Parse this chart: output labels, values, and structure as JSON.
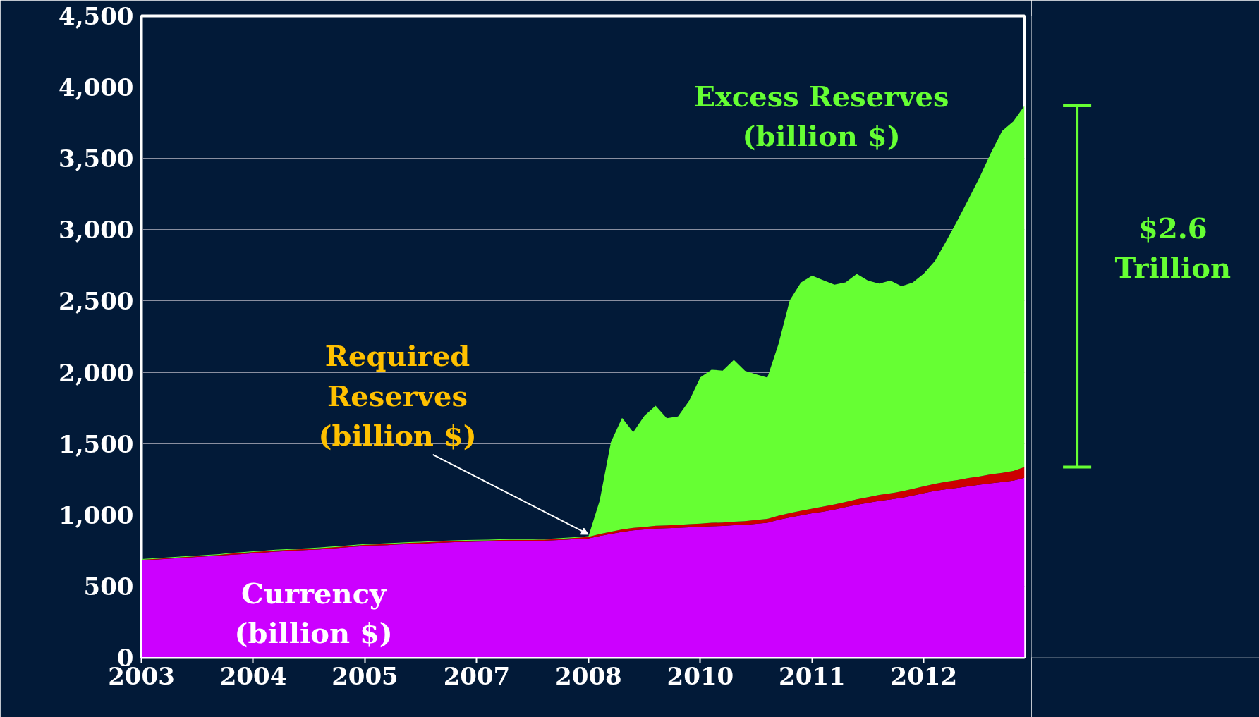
{
  "chart_data": {
    "type": "area",
    "stacked": true,
    "categories": [
      "2003",
      null,
      null,
      null,
      null,
      null,
      null,
      null,
      null,
      null,
      "2004",
      null,
      null,
      null,
      null,
      null,
      null,
      null,
      null,
      null,
      "2005",
      null,
      null,
      null,
      null,
      null,
      null,
      null,
      null,
      null,
      "2007",
      null,
      null,
      null,
      null,
      null,
      null,
      null,
      null,
      null,
      "2008",
      null,
      null,
      null,
      null,
      null,
      null,
      null,
      null,
      null,
      "2010",
      null,
      null,
      null,
      null,
      null,
      null,
      null,
      null,
      null,
      "2011",
      null,
      null,
      null,
      null,
      null,
      null,
      null,
      null,
      null,
      "2012",
      null,
      null,
      null,
      null,
      null,
      null,
      null,
      null,
      null
    ],
    "series": [
      {
        "name": "Currency\n(billion $)",
        "color": "#cc00ff",
        "values": [
          680,
          685,
          690,
          695,
          700,
          705,
          710,
          715,
          720,
          725,
          731,
          736,
          742,
          746,
          750,
          754,
          758,
          764,
          770,
          776,
          782,
          785,
          788,
          792,
          795,
          798,
          802,
          805,
          808,
          810,
          812,
          813,
          815,
          816,
          816,
          817,
          818,
          822,
          826,
          831,
          835,
          852,
          867,
          880,
          891,
          897,
          904,
          906,
          909,
          912,
          916,
          920,
          922,
          927,
          930,
          937,
          944,
          965,
          982,
          996,
          1011,
          1023,
          1037,
          1054,
          1070,
          1084,
          1098,
          1108,
          1119,
          1135,
          1152,
          1168,
          1180,
          1189,
          1201,
          1211,
          1222,
          1230,
          1240,
          1260
        ]
      },
      {
        "name": "Required\nReserves\n(billion $)",
        "color": "#cc0000",
        "values": [
          5,
          5,
          5,
          5,
          5,
          5,
          5,
          5,
          8,
          8,
          8,
          8,
          8,
          8,
          8,
          8,
          8,
          8,
          8,
          8,
          8,
          8,
          8,
          8,
          8,
          8,
          8,
          8,
          8,
          8,
          8,
          8,
          8,
          8,
          8,
          8,
          8,
          8,
          8,
          8,
          10,
          13,
          15,
          17,
          18,
          18,
          20,
          20,
          21,
          22,
          22,
          24,
          24,
          25,
          26,
          27,
          28,
          29,
          30,
          32,
          33,
          35,
          36,
          37,
          39,
          40,
          42,
          43,
          45,
          47,
          48,
          50,
          53,
          55,
          57,
          59,
          62,
          64,
          68,
          75
        ]
      },
      {
        "name": "Excess Reserves\n(billion $)",
        "color": "#66ff33",
        "values": [
          5,
          5,
          5,
          5,
          5,
          5,
          5,
          5,
          5,
          5,
          5,
          5,
          5,
          5,
          5,
          5,
          5,
          5,
          5,
          5,
          5,
          5,
          5,
          5,
          5,
          5,
          5,
          5,
          5,
          5,
          5,
          5,
          5,
          5,
          5,
          5,
          5,
          5,
          5,
          5,
          5,
          235,
          628,
          783,
          671,
          780,
          841,
          752,
          760,
          866,
          1027,
          1074,
          1066,
          1135,
          1054,
          1021,
          991,
          1206,
          1493,
          1602,
          1634,
          1587,
          1542,
          1540,
          1581,
          1519,
          1482,
          1492,
          1440,
          1448,
          1492,
          1563,
          1687,
          1821,
          1957,
          2100,
          2256,
          2399,
          2452,
          2535
        ]
      }
    ],
    "ylim": [
      0,
      4500
    ],
    "yticks": [
      0,
      {
        "value": 500,
        "label": "500"
      },
      {
        "value": 1000,
        "label": "1,000"
      },
      {
        "value": 1500,
        "label": "1,500"
      },
      {
        "value": 2000,
        "label": "2,000"
      },
      {
        "value": 2500,
        "label": "2,500"
      },
      {
        "value": 3000,
        "label": "3,000"
      },
      {
        "value": 3500,
        "label": "3,500"
      },
      {
        "value": 4000,
        "label": "4,000"
      },
      {
        "value": 4500,
        "label": "4,500"
      }
    ],
    "grid": "y",
    "annotations": [
      "$2.6\nTrillion"
    ]
  }
}
